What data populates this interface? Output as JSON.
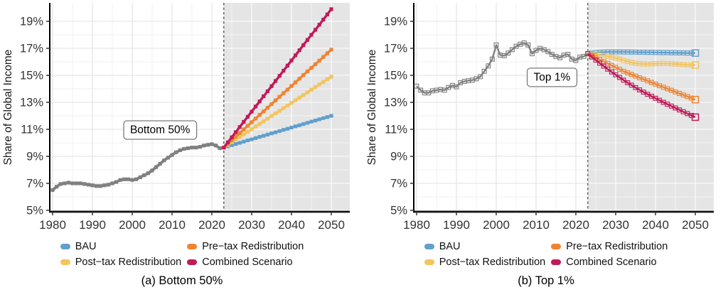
{
  "colors": {
    "historical": "#808080",
    "bau": "#619FCC",
    "pretax": "#EE8432",
    "posttax": "#F3C45F",
    "combined": "#C01A58",
    "forecast_shade": "#E5E5E5",
    "axis_text": "#333333",
    "spine": "#000000",
    "annotation_border": "#7a7a7a"
  },
  "legend": {
    "items": [
      {
        "label": "BAU",
        "color": "#619FCC"
      },
      {
        "label": "Pre−tax Redistribution",
        "color": "#EE8432"
      },
      {
        "label": "Post−tax Redistribution",
        "color": "#F3C45F"
      },
      {
        "label": "Combined Scenario",
        "color": "#C01A58"
      }
    ]
  },
  "chart_data": [
    {
      "type": "line",
      "caption": "(a) Bottom 50%",
      "ylabel": "Share of Global Income",
      "xlabel": "",
      "xlim": [
        1979,
        2055
      ],
      "ylim": [
        5,
        20.4
      ],
      "grid": "on",
      "legend_position": "bottom",
      "forecast_start": 2023,
      "annotation": {
        "label": "Bottom 50%",
        "x_year": 2007,
        "y_value": 11.0
      },
      "x_ticks": [
        {
          "v": 1980,
          "label": "1980"
        },
        {
          "v": 1990,
          "label": "1990"
        },
        {
          "v": 2000,
          "label": "2000"
        },
        {
          "v": 2010,
          "label": "2010"
        },
        {
          "v": 2020,
          "label": "2020"
        },
        {
          "v": 2030,
          "label": "2030"
        },
        {
          "v": 2040,
          "label": "2040"
        },
        {
          "v": 2050,
          "label": "2050"
        }
      ],
      "y_ticks": [
        {
          "v": 19,
          "label": "19%"
        },
        {
          "v": 17,
          "label": "17%"
        },
        {
          "v": 15,
          "label": "15%"
        },
        {
          "v": 13,
          "label": "13%"
        },
        {
          "v": 11,
          "label": "11%"
        },
        {
          "v": 9,
          "label": "9%"
        },
        {
          "v": 7,
          "label": "7%"
        },
        {
          "v": 5,
          "label": "5%"
        }
      ],
      "series": [
        {
          "name": "Historical",
          "color": "#808080",
          "marker": "filled-square",
          "start_year": 1980,
          "values": [
            6.5,
            6.75,
            6.95,
            7.0,
            7.05,
            7.0,
            7.0,
            7.0,
            6.95,
            6.9,
            6.85,
            6.8,
            6.8,
            6.85,
            6.9,
            7.0,
            7.1,
            7.25,
            7.3,
            7.3,
            7.25,
            7.3,
            7.45,
            7.6,
            7.75,
            7.95,
            8.2,
            8.45,
            8.7,
            8.9,
            9.1,
            9.3,
            9.45,
            9.55,
            9.6,
            9.65,
            9.65,
            9.7,
            9.8,
            9.85,
            9.9,
            9.8,
            9.6,
            9.65
          ]
        },
        {
          "name": "BAU",
          "color": "#619FCC",
          "marker": "filled-square",
          "start_year": 2023,
          "values": [
            9.65,
            9.74,
            9.83,
            9.91,
            10.0,
            10.09,
            10.18,
            10.26,
            10.35,
            10.44,
            10.52,
            10.61,
            10.7,
            10.78,
            10.87,
            10.96,
            11.04,
            11.13,
            11.22,
            11.3,
            11.39,
            11.48,
            11.57,
            11.65,
            11.74,
            11.83,
            11.91,
            12.0
          ]
        },
        {
          "name": "Post-tax Redistribution",
          "color": "#F3C45F",
          "marker": "filled-square",
          "start_year": 2023,
          "values": [
            9.65,
            9.84,
            10.04,
            10.23,
            10.43,
            10.62,
            10.82,
            11.01,
            11.21,
            11.4,
            11.6,
            11.79,
            11.99,
            12.18,
            12.37,
            12.57,
            12.76,
            12.96,
            13.15,
            13.35,
            13.54,
            13.74,
            13.93,
            14.13,
            14.32,
            14.51,
            14.71,
            14.9
          ]
        },
        {
          "name": "Pre-tax Redistribution",
          "color": "#EE8432",
          "marker": "filled-square",
          "start_year": 2023,
          "values": [
            9.65,
            9.92,
            10.19,
            10.46,
            10.72,
            10.99,
            11.26,
            11.53,
            11.8,
            12.07,
            12.33,
            12.6,
            12.87,
            13.14,
            13.41,
            13.68,
            13.94,
            14.21,
            14.48,
            14.75,
            15.02,
            15.29,
            15.55,
            15.82,
            16.09,
            16.36,
            16.63,
            16.9
          ]
        },
        {
          "name": "Combined Scenario",
          "color": "#C01A58",
          "marker": "filled-square",
          "start_year": 2023,
          "values": [
            9.65,
            10.03,
            10.41,
            10.79,
            11.17,
            11.55,
            11.93,
            12.31,
            12.69,
            13.07,
            13.45,
            13.82,
            14.2,
            14.58,
            14.96,
            15.34,
            15.72,
            16.1,
            16.48,
            16.86,
            17.24,
            17.62,
            18.0,
            18.37,
            18.75,
            19.13,
            19.51,
            19.9
          ]
        }
      ]
    },
    {
      "type": "line",
      "caption": "(b) Top 1%",
      "ylabel": "Share of Global Income",
      "xlabel": "",
      "xlim": [
        1979,
        2055
      ],
      "ylim": [
        5,
        20.4
      ],
      "grid": "on",
      "legend_position": "bottom",
      "forecast_start": 2023,
      "annotation": {
        "label": "Top 1%",
        "x_year": 2014,
        "y_value": 14.9
      },
      "x_ticks": [
        {
          "v": 1980,
          "label": "1980"
        },
        {
          "v": 1990,
          "label": "1990"
        },
        {
          "v": 2000,
          "label": "2000"
        },
        {
          "v": 2010,
          "label": "2010"
        },
        {
          "v": 2020,
          "label": "2020"
        },
        {
          "v": 2030,
          "label": "2030"
        },
        {
          "v": 2040,
          "label": "2040"
        },
        {
          "v": 2050,
          "label": "2050"
        }
      ],
      "y_ticks": [
        {
          "v": 19,
          "label": "19%"
        },
        {
          "v": 17,
          "label": "17%"
        },
        {
          "v": 15,
          "label": "15%"
        },
        {
          "v": 13,
          "label": "13%"
        },
        {
          "v": 11,
          "label": "11%"
        },
        {
          "v": 9,
          "label": "9%"
        },
        {
          "v": 7,
          "label": "7%"
        },
        {
          "v": 5,
          "label": "5%"
        }
      ],
      "series": [
        {
          "name": "Historical",
          "color": "#808080",
          "marker": "open-square",
          "start_year": 1980,
          "values": [
            14.2,
            13.9,
            13.7,
            13.7,
            13.85,
            13.9,
            13.95,
            13.9,
            14.1,
            14.25,
            14.15,
            14.45,
            14.55,
            14.6,
            14.65,
            14.75,
            14.9,
            15.3,
            15.7,
            16.2,
            17.25,
            16.5,
            16.45,
            16.65,
            16.9,
            17.15,
            17.3,
            17.4,
            17.25,
            16.6,
            16.85,
            17.0,
            16.9,
            16.75,
            16.55,
            16.4,
            16.3,
            16.5,
            16.55,
            16.2,
            16.1,
            16.35,
            16.4,
            16.6
          ]
        },
        {
          "name": "BAU",
          "color": "#619FCC",
          "marker": "open-square",
          "end_cap": true,
          "start_year": 2023,
          "values": [
            16.6,
            16.64,
            16.67,
            16.7,
            16.72,
            16.73,
            16.74,
            16.74,
            16.74,
            16.73,
            16.73,
            16.72,
            16.72,
            16.71,
            16.71,
            16.7,
            16.7,
            16.69,
            16.69,
            16.68,
            16.68,
            16.67,
            16.67,
            16.66,
            16.66,
            16.65,
            16.65,
            16.65
          ]
        },
        {
          "name": "Post-tax Redistribution",
          "color": "#F3C45F",
          "marker": "open-square",
          "end_cap": true,
          "start_year": 2023,
          "values": [
            16.6,
            16.57,
            16.54,
            16.5,
            16.46,
            16.41,
            16.35,
            16.28,
            16.2,
            16.11,
            16.02,
            15.95,
            15.9,
            15.86,
            15.84,
            15.83,
            15.84,
            15.86,
            15.88,
            15.89,
            15.88,
            15.86,
            15.84,
            15.82,
            15.8,
            15.78,
            15.77,
            15.76
          ]
        },
        {
          "name": "Pre-tax Redistribution",
          "color": "#EE8432",
          "marker": "open-square",
          "end_cap": true,
          "start_year": 2023,
          "values": [
            16.6,
            16.46,
            16.31,
            16.17,
            16.02,
            15.88,
            15.73,
            15.59,
            15.44,
            15.3,
            15.18,
            15.06,
            14.94,
            14.82,
            14.71,
            14.59,
            14.47,
            14.35,
            14.23,
            14.12,
            14.0,
            13.89,
            13.77,
            13.66,
            13.54,
            13.43,
            13.31,
            13.2
          ]
        },
        {
          "name": "Combined Scenario",
          "color": "#C01A58",
          "marker": "open-square",
          "end_cap": true,
          "start_year": 2023,
          "values": [
            16.6,
            16.36,
            16.13,
            15.9,
            15.68,
            15.46,
            15.25,
            15.04,
            14.84,
            14.64,
            14.45,
            14.27,
            14.09,
            13.92,
            13.76,
            13.6,
            13.45,
            13.3,
            13.15,
            13.0,
            12.86,
            12.72,
            12.58,
            12.44,
            12.3,
            12.17,
            12.03,
            11.9
          ]
        }
      ]
    }
  ]
}
